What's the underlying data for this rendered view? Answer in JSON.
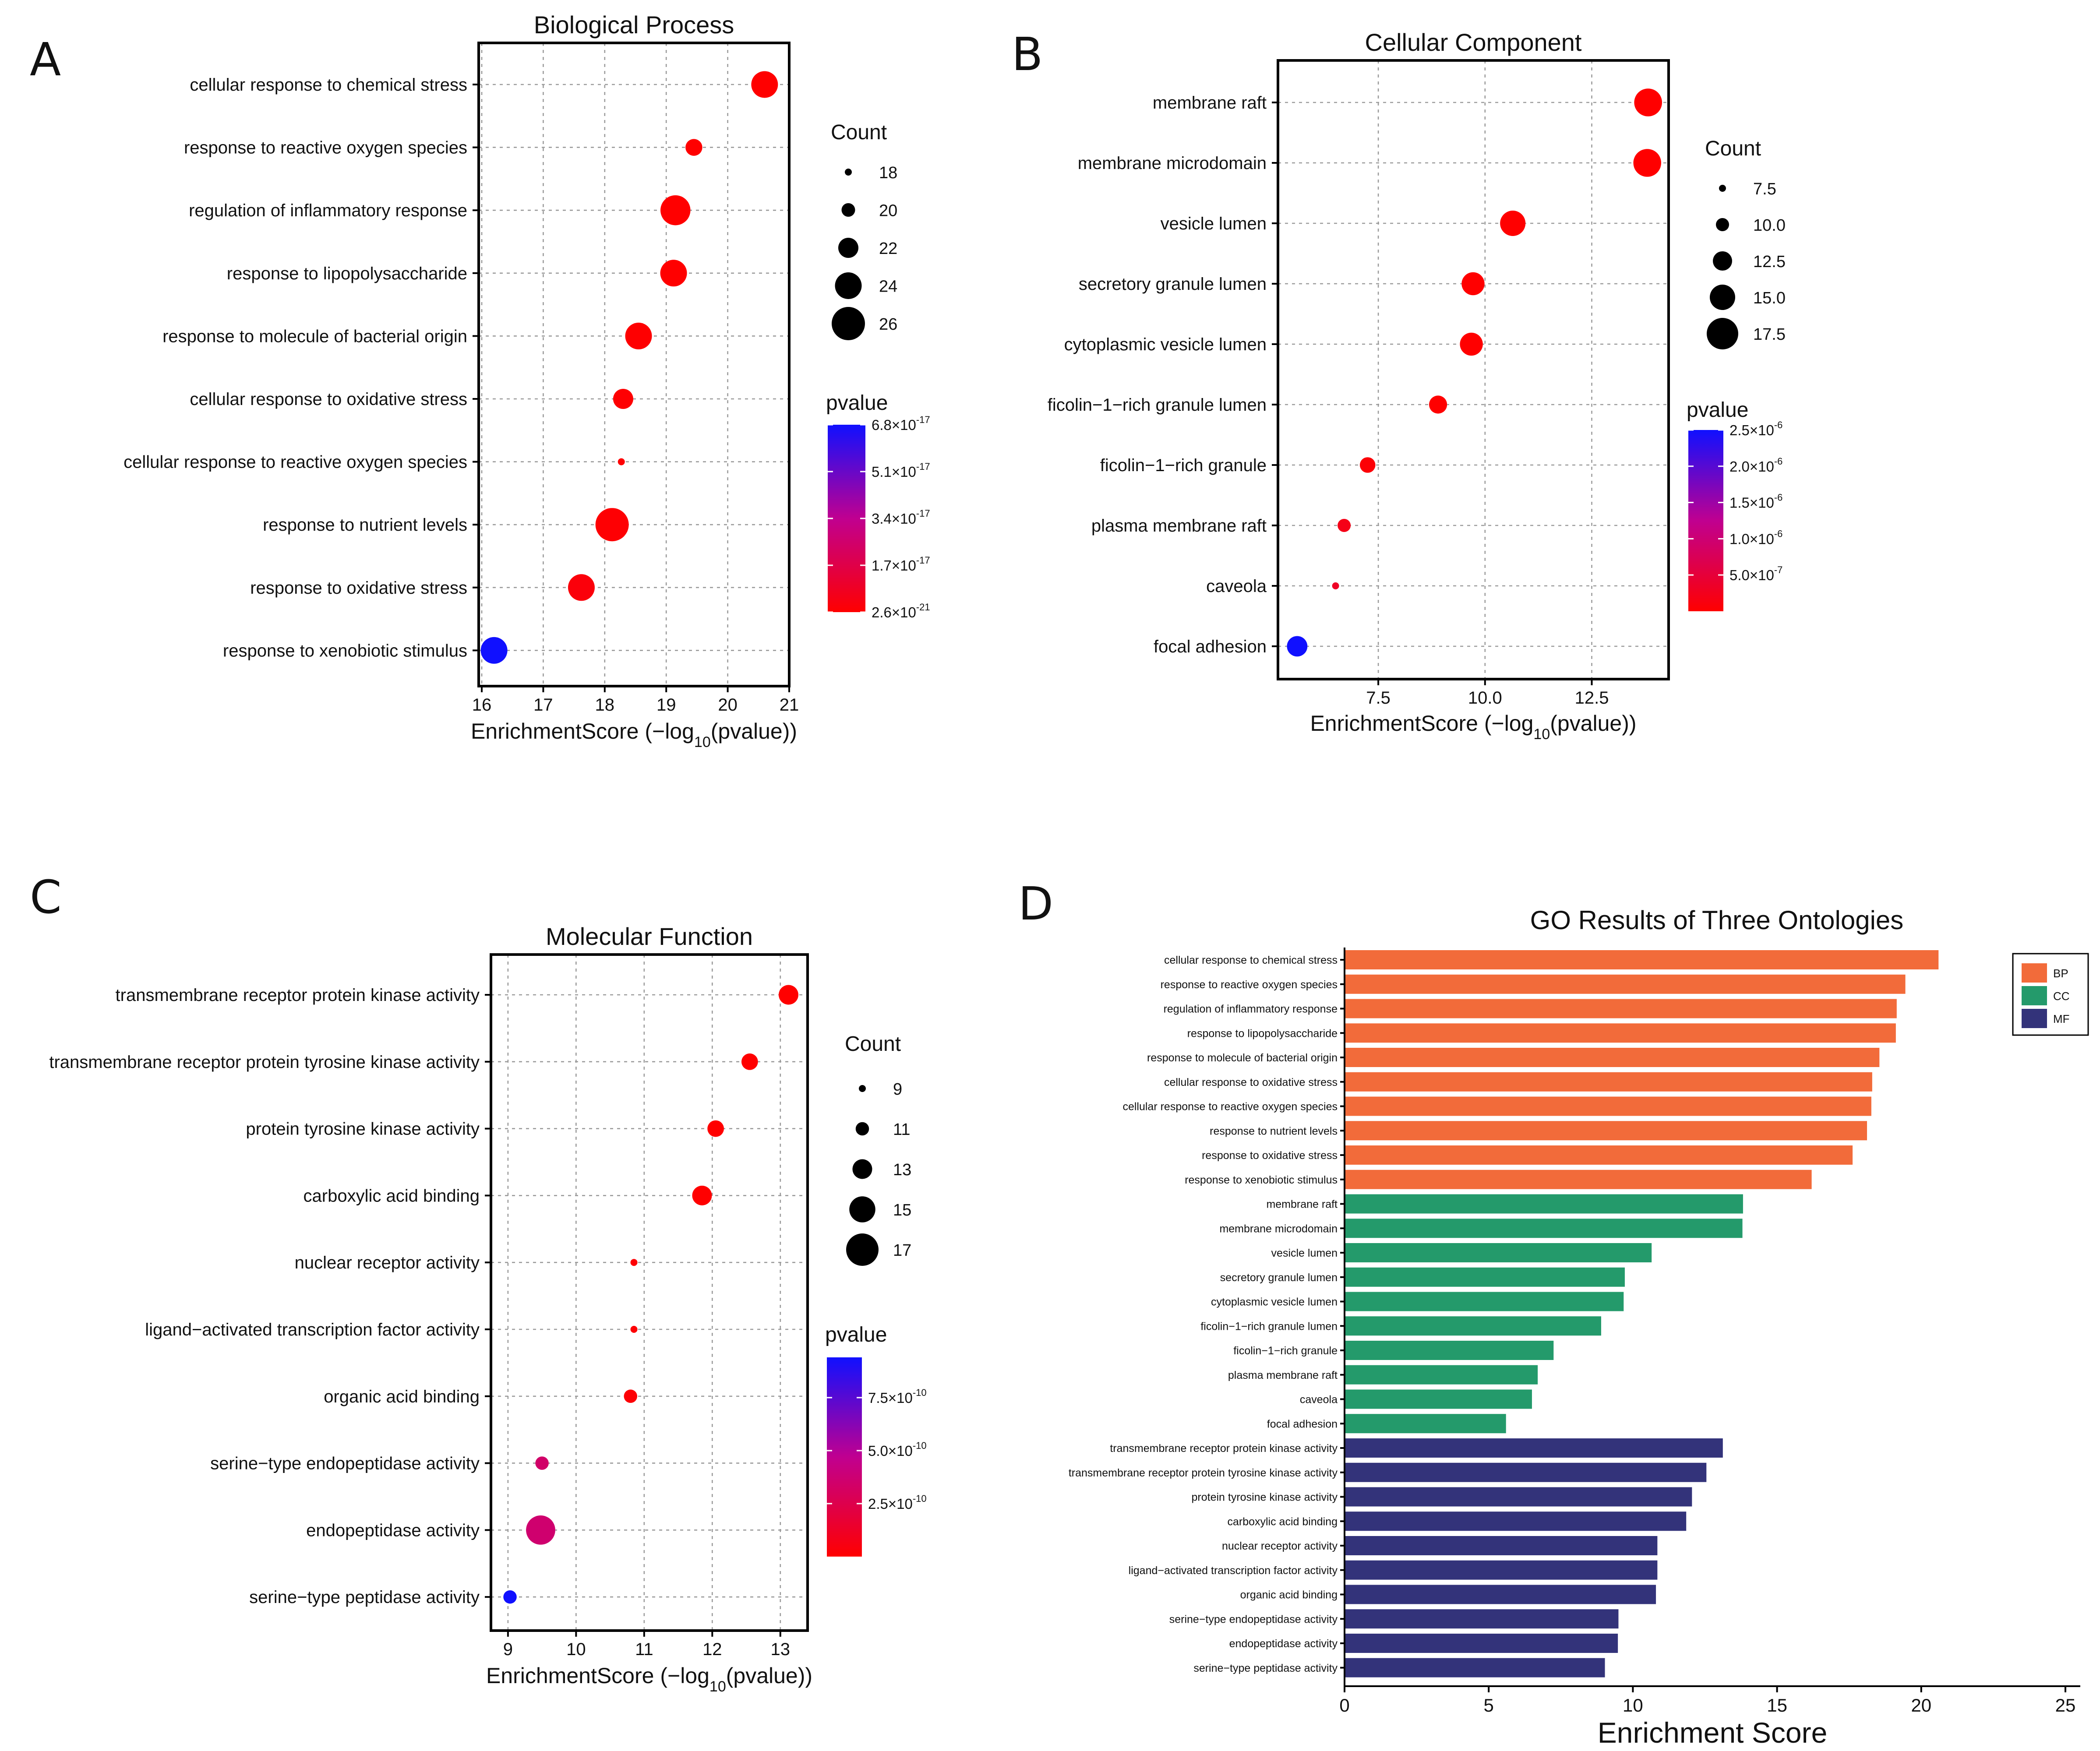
{
  "labels": {
    "A": "A",
    "B": "B",
    "C": "C",
    "D": "D"
  },
  "chart_data": [
    {
      "panel": "A",
      "type": "scatter",
      "title": "Biological Process",
      "xlabel": "EnrichmentScore (−log10(pvalue))",
      "xlabel_parts": {
        "pre": "EnrichmentScore (−log",
        "sub": "10",
        "post": "(pvalue))"
      },
      "xlim": [
        15.95,
        21.0
      ],
      "xticks": [
        16,
        17,
        18,
        19,
        20,
        21
      ],
      "categories": [
        "cellular response to chemical stress",
        "response to reactive oxygen species",
        "regulation of inflammatory response",
        "response to lipopolysaccharide",
        "response to molecule of bacterial origin",
        "cellular response to oxidative stress",
        "cellular response to reactive oxygen species",
        "response to nutrient levels",
        "response to oxidative stress",
        "response to xenobiotic stimulus"
      ],
      "x": [
        20.6,
        19.45,
        19.15,
        19.12,
        18.55,
        18.3,
        18.27,
        18.12,
        17.62,
        16.2
      ],
      "count": [
        24,
        21,
        25,
        24,
        24,
        22,
        17,
        26,
        24,
        24
      ],
      "pvalue": [
        2.6e-21,
        3.5e-20,
        7e-20,
        7.6e-20,
        2.8e-19,
        5e-19,
        5.4e-19,
        7.6e-19,
        2.4e-18,
        6.8e-17
      ],
      "size_legend": {
        "title": "Count",
        "values": [
          18,
          20,
          22,
          24,
          26
        ],
        "labels": [
          "18",
          "20",
          "22",
          "24",
          "26"
        ]
      },
      "color_legend": {
        "title": "pvalue",
        "min": 2.6e-21,
        "max": 6.8e-17,
        "ticks": [
          {
            "value": 6.8e-17,
            "m": "6.8",
            "e": "-17"
          },
          {
            "value": 5.1e-17,
            "m": "5.1",
            "e": "-17"
          },
          {
            "value": 3.4e-17,
            "m": "3.4",
            "e": "-17"
          },
          {
            "value": 1.7e-17,
            "m": "1.7",
            "e": "-17"
          },
          {
            "value": 2.6e-21,
            "m": "2.6",
            "e": "-21"
          }
        ]
      },
      "low_color": "#ff0000",
      "mid_color": "#c00090",
      "high_color": "#1010ff"
    },
    {
      "panel": "B",
      "type": "scatter",
      "title": "Cellular Component",
      "xlabel": "EnrichmentScore (−log10(pvalue))",
      "xlabel_parts": {
        "pre": "EnrichmentScore (−log",
        "sub": "10",
        "post": "(pvalue))"
      },
      "xlim": [
        5.15,
        14.3
      ],
      "xticks": [
        7.5,
        10.0,
        12.5
      ],
      "xtick_labels": [
        "7.5",
        "10.0",
        "12.5"
      ],
      "categories": [
        "membrane raft",
        "membrane microdomain",
        "vesicle lumen",
        "secretory granule lumen",
        "cytoplasmic vesicle lumen",
        "ficolin−1−rich granule lumen",
        "ficolin−1−rich granule",
        "plasma membrane raft",
        "caveola",
        "focal adhesion"
      ],
      "x": [
        13.82,
        13.8,
        10.65,
        9.72,
        9.68,
        8.9,
        7.25,
        6.7,
        6.5,
        5.6
      ],
      "count": [
        16,
        16,
        15,
        14,
        14,
        12,
        11,
        10,
        7,
        13
      ],
      "pvalue": [
        1.5e-14,
        1.6e-14,
        2.2e-11,
        1.9e-10,
        2.1e-10,
        1.3e-09,
        5.6e-08,
        2e-07,
        3.2e-07,
        2.5e-06
      ],
      "size_legend": {
        "title": "Count",
        "values": [
          7.5,
          10.0,
          12.5,
          15.0,
          17.5
        ],
        "labels": [
          "7.5",
          "10.0",
          "12.5",
          "15.0",
          "17.5"
        ]
      },
      "color_legend": {
        "title": "pvalue",
        "min": 1.5e-14,
        "max": 2.5e-06,
        "ticks": [
          {
            "value": 2.5e-06,
            "m": "2.5",
            "e": "-6"
          },
          {
            "value": 2e-06,
            "m": "2.0",
            "e": "-6"
          },
          {
            "value": 1.5e-06,
            "m": "1.5",
            "e": "-6"
          },
          {
            "value": 1e-06,
            "m": "1.0",
            "e": "-6"
          },
          {
            "value": 5e-07,
            "m": "5.0",
            "e": "-7"
          }
        ]
      },
      "low_color": "#ff0000",
      "mid_color": "#c00090",
      "high_color": "#1010ff"
    },
    {
      "panel": "C",
      "type": "scatter",
      "title": "Molecular Function",
      "xlabel": "EnrichmentScore (−log10(pvalue))",
      "xlabel_parts": {
        "pre": "EnrichmentScore (−log",
        "sub": "10",
        "post": "(pvalue))"
      },
      "xlim": [
        8.75,
        13.4
      ],
      "xticks": [
        9,
        10,
        11,
        12,
        13
      ],
      "categories": [
        "transmembrane receptor protein kinase activity",
        "transmembrane receptor protein tyrosine kinase activity",
        "protein tyrosine kinase activity",
        "carboxylic acid binding",
        "nuclear receptor activity",
        "ligand−activated transcription factor activity",
        "organic acid binding",
        "serine−type endopeptidase activity",
        "endopeptidase activity",
        "serine−type peptidase activity"
      ],
      "x": [
        13.12,
        12.55,
        12.05,
        11.85,
        10.85,
        10.85,
        10.8,
        9.5,
        9.48,
        9.03
      ],
      "count": [
        13,
        12,
        12,
        13,
        8,
        8,
        11,
        11,
        16,
        11
      ],
      "pvalue": [
        7.6e-14,
        2.8e-13,
        8.9e-13,
        1.4e-12,
        1.4e-11,
        1.4e-11,
        1.6e-11,
        3.4e-10,
        3.6e-10,
        9.4e-10
      ],
      "size_legend": {
        "title": "Count",
        "values": [
          9,
          11,
          13,
          15,
          17
        ],
        "labels": [
          "9",
          "11",
          "13",
          "15",
          "17"
        ]
      },
      "color_legend": {
        "title": "pvalue",
        "min": 7.6e-14,
        "max": 9.4e-10,
        "ticks": [
          {
            "value": 7.5e-10,
            "m": "7.5",
            "e": "-10"
          },
          {
            "value": 5e-10,
            "m": "5.0",
            "e": "-10"
          },
          {
            "value": 2.5e-10,
            "m": "2.5",
            "e": "-10"
          }
        ]
      },
      "low_color": "#ff0000",
      "mid_color": "#c00090",
      "high_color": "#1010ff"
    },
    {
      "panel": "D",
      "type": "bar",
      "orientation": "horizontal",
      "title": "GO Results of Three Ontologies",
      "xlabel": "Enrichment Score",
      "xlim": [
        0,
        25
      ],
      "xticks": [
        0,
        5,
        10,
        15,
        20,
        25
      ],
      "legend": [
        {
          "name": "BP",
          "color": "#f26b3a"
        },
        {
          "name": "CC",
          "color": "#249a6b"
        },
        {
          "name": "MF",
          "color": "#33337a"
        }
      ],
      "categories": [
        "cellular response to chemical stress",
        "response to reactive oxygen species",
        "regulation of inflammatory response",
        "response to lipopolysaccharide",
        "response to molecule of bacterial origin",
        "cellular response to oxidative stress",
        "cellular response to reactive oxygen species",
        "response to nutrient levels",
        "response to oxidative stress",
        "response to xenobiotic stimulus",
        "membrane raft",
        "membrane microdomain",
        "vesicle lumen",
        "secretory granule lumen",
        "cytoplasmic vesicle lumen",
        "ficolin−1−rich granule lumen",
        "ficolin−1−rich granule",
        "plasma membrane raft",
        "caveola",
        "focal adhesion",
        "transmembrane receptor protein kinase activity",
        "transmembrane receptor protein tyrosine kinase activity",
        "protein tyrosine kinase activity",
        "carboxylic acid binding",
        "nuclear receptor activity",
        "ligand−activated transcription factor activity",
        "organic acid binding",
        "serine−type endopeptidase activity",
        "endopeptidase activity",
        "serine−type peptidase activity"
      ],
      "values": [
        20.6,
        19.45,
        19.15,
        19.12,
        18.55,
        18.3,
        18.27,
        18.12,
        17.62,
        16.2,
        13.82,
        13.8,
        10.65,
        9.72,
        9.68,
        8.9,
        7.25,
        6.7,
        6.5,
        5.6,
        13.12,
        12.55,
        12.05,
        11.85,
        10.85,
        10.85,
        10.8,
        9.5,
        9.48,
        9.03
      ],
      "groups": [
        "BP",
        "BP",
        "BP",
        "BP",
        "BP",
        "BP",
        "BP",
        "BP",
        "BP",
        "BP",
        "CC",
        "CC",
        "CC",
        "CC",
        "CC",
        "CC",
        "CC",
        "CC",
        "CC",
        "CC",
        "MF",
        "MF",
        "MF",
        "MF",
        "MF",
        "MF",
        "MF",
        "MF",
        "MF",
        "MF"
      ]
    }
  ]
}
